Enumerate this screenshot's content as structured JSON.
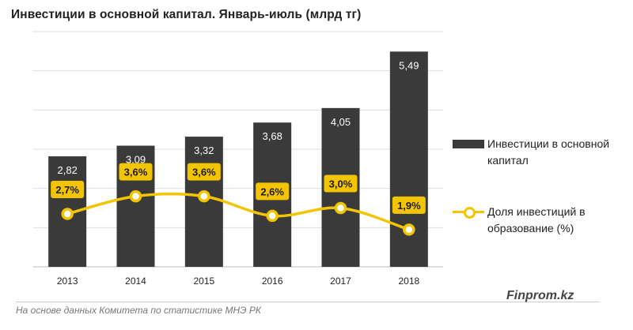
{
  "chart_data": {
    "type": "bar",
    "title": "Инвестиции в основной капитал. Январь-июль (млрд тг)",
    "categories": [
      "2013",
      "2014",
      "2015",
      "2016",
      "2017",
      "2018"
    ],
    "series": [
      {
        "name": "Инвестиции в основной капитал",
        "type": "bar",
        "values": [
          2.82,
          3.09,
          3.32,
          3.68,
          4.05,
          5.49
        ],
        "labels": [
          "2,82",
          "3,09",
          "3,32",
          "3,68",
          "4,05",
          "5,49"
        ],
        "color": "#3a3a3a"
      },
      {
        "name": "Доля инвестиций в образование (%)",
        "type": "line",
        "values": [
          2.7,
          3.6,
          3.6,
          2.6,
          3.0,
          1.9
        ],
        "labels": [
          "2,7%",
          "3,6%",
          "3,6%",
          "2,6%",
          "3,0%",
          "1,9%"
        ],
        "color": "#f2c500"
      }
    ],
    "ylim": [
      0,
      6
    ],
    "line_ylim": [
      0,
      12
    ],
    "grid": true,
    "legend": "right"
  },
  "legend": {
    "bar_label": "Инвестиции в основной капитал",
    "line_label": "Доля инвестиций в образование (%)"
  },
  "footer": {
    "source": "На основе данных Комитета по статистике МНЭ РК",
    "brand": "Finprom.kz"
  }
}
